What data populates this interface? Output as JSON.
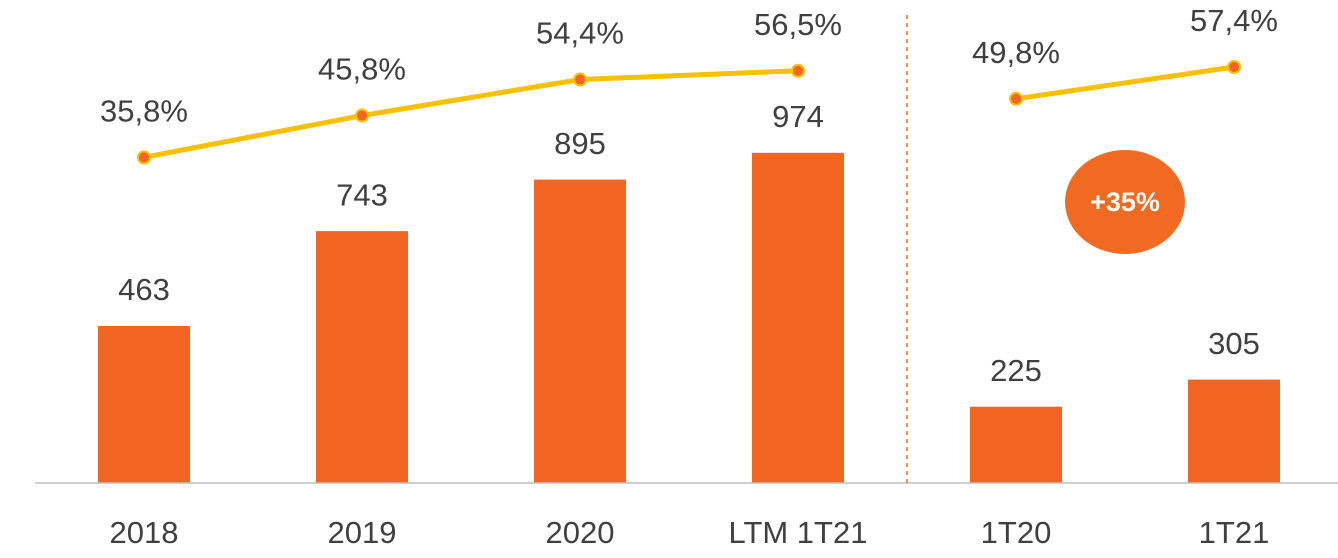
{
  "chart_data": {
    "type": "bar_line",
    "categories": [
      "2018",
      "2019",
      "2020",
      "LTM 1T21",
      "1T20",
      "1T21"
    ],
    "values": [
      463,
      743,
      895,
      974,
      225,
      305
    ],
    "color": "#f26522",
    "ylim": [
      0,
      1000
    ],
    "line_values": [
      35.8,
      45.8,
      54.4,
      56.5,
      49.8,
      57.4
    ],
    "line_value_labels": [
      "35,8%",
      "45,8%",
      "54,4%",
      "56,5%",
      "49,8%",
      "57,4%"
    ],
    "line_color": "#f9c000",
    "y2lim": [
      -42,
      39
    ],
    "divider_after": 3,
    "annotations": [
      "+35%"
    ]
  }
}
